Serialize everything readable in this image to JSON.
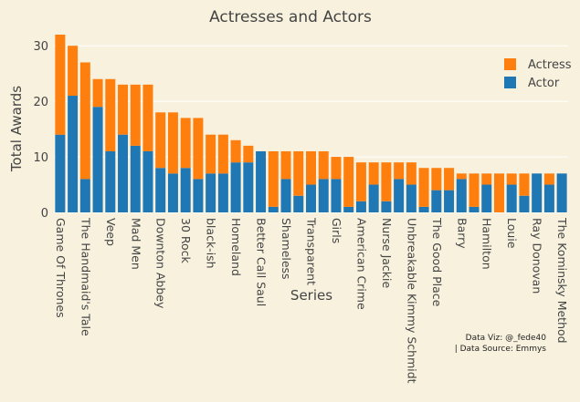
{
  "chart_data": {
    "type": "bar",
    "stacked": true,
    "title": "Actresses and Actors",
    "xlabel": "Series",
    "ylabel": "Total Awards",
    "ylim": [
      0,
      32
    ],
    "yticks": [
      0,
      10,
      20,
      30
    ],
    "grid": true,
    "legend_position": "top-right",
    "colors": {
      "Actress": "#ff7f0e",
      "Actor": "#1f77b4",
      "background": "#f7f1de",
      "grid": "#ffffff",
      "text": "#444444"
    },
    "categories": [
      "Game Of Thrones",
      "",
      "The Handmaid's Tale",
      "",
      "Veep",
      "",
      "Mad Men",
      "",
      "Downton Abbey",
      "",
      "30 Rock",
      "",
      "black-ish",
      "",
      "Homeland",
      "",
      "Better Call Saul",
      "",
      "Shameless",
      "",
      "Transparent",
      "",
      "Girls",
      "",
      "American Crime",
      "",
      "Nurse Jackie",
      "",
      "Unbreakable Kimmy Schmidt",
      "",
      "The Good Place",
      "",
      "Barry",
      "",
      "Hamilton",
      "",
      "Louie",
      "",
      "Ray Donovan",
      "",
      "The Kominsky Method"
    ],
    "series": [
      {
        "name": "Actor",
        "color": "#1f77b4",
        "values": [
          14,
          21,
          6,
          19,
          11,
          14,
          12,
          11,
          8,
          7,
          8,
          6,
          7,
          7,
          9,
          9,
          11,
          1,
          6,
          3,
          5,
          6,
          6,
          1,
          2,
          5,
          2,
          6,
          5,
          1,
          4,
          4,
          6,
          1,
          5,
          0,
          5,
          3,
          7,
          5,
          7
        ]
      },
      {
        "name": "Actress",
        "color": "#ff7f0e",
        "values": [
          18,
          9,
          21,
          5,
          13,
          9,
          11,
          12,
          10,
          11,
          9,
          11,
          7,
          7,
          4,
          3,
          0,
          10,
          5,
          8,
          6,
          5,
          4,
          9,
          7,
          4,
          7,
          3,
          4,
          7,
          4,
          4,
          1,
          6,
          2,
          7,
          2,
          4,
          0,
          2,
          0
        ]
      }
    ],
    "annotation": {
      "line1": "Data Viz: @_fede40",
      "line2": "| Data Source: Emmys"
    }
  }
}
